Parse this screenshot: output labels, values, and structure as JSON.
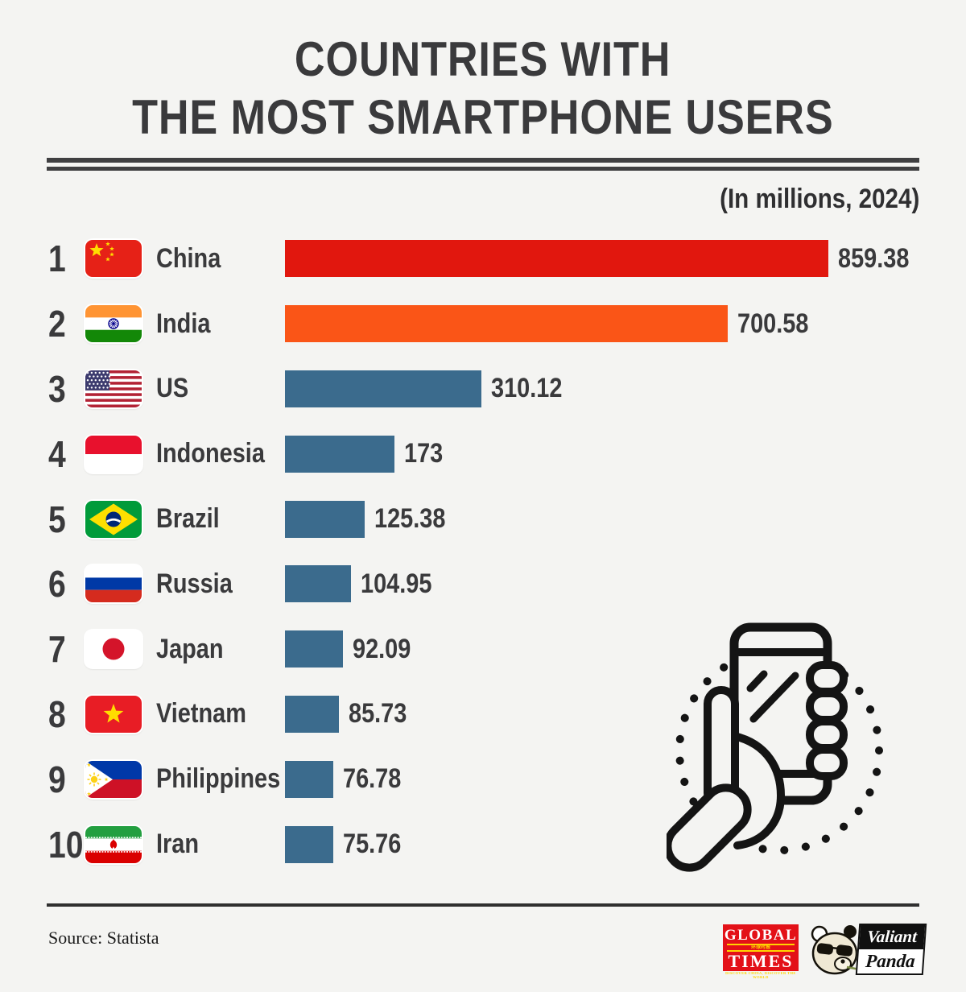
{
  "page": {
    "background": "#f4f4f2",
    "text_color": "#3a3a3c"
  },
  "header": {
    "title_line1": "COUNTRIES WITH",
    "title_line2": "THE MOST SMARTPHONE USERS",
    "subtitle": "(In millions, 2024)"
  },
  "chart_data": {
    "type": "bar",
    "orientation": "horizontal",
    "title": "Countries with the most smartphone users",
    "unit_label": "(In millions, 2024)",
    "ranks": [
      1,
      2,
      3,
      4,
      5,
      6,
      7,
      8,
      9,
      10
    ],
    "categories": [
      "China",
      "India",
      "US",
      "Indonesia",
      "Brazil",
      "Russia",
      "Japan",
      "Vietnam",
      "Philippines",
      "Iran"
    ],
    "values": [
      859.38,
      700.58,
      310.12,
      173,
      125.38,
      104.95,
      92.09,
      85.73,
      76.78,
      75.76
    ],
    "value_labels": [
      "859.38",
      "700.58",
      "310.12",
      "173",
      "125.38",
      "104.95",
      "92.09",
      "85.73",
      "76.78",
      "75.76"
    ],
    "flags": [
      "china",
      "india",
      "us",
      "indonesia",
      "brazil",
      "russia",
      "japan",
      "vietnam",
      "philippines",
      "iran"
    ],
    "bar_colors": [
      "#e1170e",
      "#fa5517",
      "#3b6b8d",
      "#3b6b8d",
      "#3b6b8d",
      "#3b6b8d",
      "#3b6b8d",
      "#3b6b8d",
      "#3b6b8d",
      "#3b6b8d"
    ],
    "xlim": [
      0,
      860
    ],
    "grid": false,
    "legend": false
  },
  "decoration": {
    "icon": "hand-holding-smartphone-with-dotted-circle"
  },
  "footer": {
    "source": "Source: Statista",
    "global_times_logo": {
      "line1": "GLOBAL",
      "line2": "TIMES",
      "masthead_cn": "环球时报",
      "tagline": "DISCOVER CHINA, DISCOVER THE WORLD"
    },
    "valiant_panda_logo": {
      "line1": "Valiant",
      "line2": "Panda"
    }
  }
}
